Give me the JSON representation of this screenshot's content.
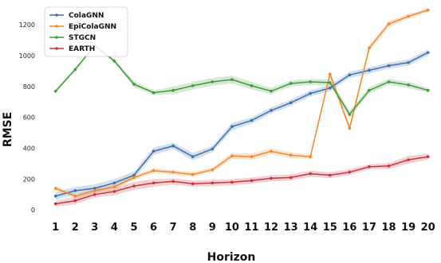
{
  "chart_data": {
    "type": "line",
    "xlabel": "Horizon",
    "ylabel": "RMSE",
    "x": [
      1,
      2,
      3,
      4,
      5,
      6,
      7,
      8,
      9,
      10,
      11,
      12,
      13,
      14,
      15,
      16,
      17,
      18,
      19,
      20
    ],
    "xlim": [
      0.2,
      20.5
    ],
    "ylim": [
      -40,
      1340
    ],
    "yticks": [
      0,
      200,
      400,
      600,
      800,
      1000,
      1200
    ],
    "grid": false,
    "legend_position": "top-left",
    "series": [
      {
        "name": "ColaGNN",
        "color": "#3a6fb0",
        "values": [
          90,
          125,
          140,
          175,
          225,
          380,
          415,
          345,
          395,
          540,
          580,
          645,
          695,
          755,
          790,
          875,
          905,
          935,
          955,
          1020
        ],
        "band": [
          25,
          25,
          25,
          25,
          25,
          25,
          20,
          25,
          20,
          25,
          20,
          20,
          20,
          20,
          20,
          20,
          20,
          20,
          20,
          20
        ]
      },
      {
        "name": "EpiColaGNN",
        "color": "#f2872a",
        "values": [
          140,
          90,
          125,
          150,
          210,
          255,
          245,
          230,
          260,
          350,
          345,
          380,
          355,
          345,
          880,
          530,
          1050,
          1205,
          1255,
          1295
        ],
        "band": [
          15,
          15,
          15,
          15,
          15,
          15,
          15,
          15,
          15,
          20,
          20,
          20,
          20,
          15,
          20,
          20,
          20,
          20,
          15,
          15
        ]
      },
      {
        "name": "STGCN",
        "color": "#3f9a3c",
        "values": [
          770,
          910,
          1065,
          965,
          815,
          760,
          775,
          805,
          830,
          845,
          805,
          770,
          820,
          830,
          825,
          620,
          775,
          830,
          810,
          775
        ],
        "band": [
          10,
          10,
          10,
          10,
          20,
          15,
          25,
          25,
          25,
          25,
          25,
          20,
          20,
          20,
          20,
          25,
          20,
          20,
          20,
          15
        ]
      },
      {
        "name": "EARTH",
        "color": "#c8343c",
        "values": [
          40,
          60,
          100,
          120,
          155,
          175,
          185,
          170,
          175,
          180,
          190,
          205,
          210,
          235,
          225,
          245,
          280,
          285,
          325,
          345
        ],
        "band": [
          20,
          25,
          20,
          25,
          25,
          25,
          20,
          20,
          20,
          20,
          20,
          20,
          20,
          20,
          20,
          20,
          15,
          20,
          25,
          20
        ]
      }
    ]
  }
}
